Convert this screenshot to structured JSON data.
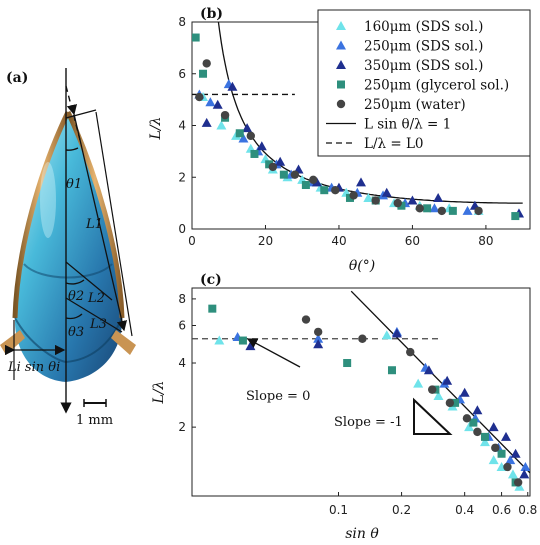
{
  "panel_a": {
    "label": "(a)",
    "theta1": "θ1",
    "L1": "L1",
    "theta2": "θ2",
    "L2": "L2",
    "theta3": "θ3",
    "L3": "L3",
    "width": "Li sin θi",
    "scale": "1 mm"
  },
  "panel_b": {
    "label": "(b)"
  },
  "panel_c": {
    "label": "(c)",
    "slope0": "Slope = 0",
    "slope1": "Slope = -1"
  },
  "colors": {
    "s160": "#6fe3ea",
    "s250": "#3b73e0",
    "s350": "#1f2f8f",
    "glycerol": "#2e8f7d",
    "water": "#444444"
  },
  "chart_data": [
    {
      "type": "scatter",
      "xlabel": "θ(°)",
      "ylabel": "L/λ",
      "xlim": [
        0,
        92
      ],
      "ylim": [
        0,
        8
      ],
      "xticks": [
        0,
        20,
        40,
        60,
        80
      ],
      "yticks": [
        0,
        2,
        4,
        6,
        8
      ],
      "legend_position": "top-right",
      "legend": [
        "160μm (SDS sol.)",
        "250μm (SDS sol.)",
        "350μm (SDS sol.)",
        "250μm (glycerol sol.)",
        "250μm (water)",
        "L sin θ/λ = 1",
        "L/λ = L0"
      ],
      "series": [
        {
          "name": "160μm (SDS sol.)",
          "marker": "triangle",
          "color_key": "s160",
          "x": [
            3,
            8,
            12,
            16,
            20,
            22,
            26,
            30,
            35,
            42,
            48,
            55,
            62,
            70,
            78
          ],
          "y": [
            5.1,
            4.0,
            3.6,
            3.1,
            2.7,
            2.3,
            2.0,
            1.9,
            1.6,
            1.4,
            1.2,
            1.0,
            0.9,
            0.8,
            0.7
          ]
        },
        {
          "name": "250μm (SDS sol.)",
          "marker": "triangle",
          "color_key": "s250",
          "x": [
            2,
            5,
            10,
            14,
            18,
            23,
            27,
            33,
            38,
            45,
            52,
            58,
            66,
            75,
            89
          ],
          "y": [
            5.2,
            4.9,
            5.6,
            3.5,
            3.0,
            2.5,
            2.1,
            1.8,
            1.6,
            1.4,
            1.3,
            1.0,
            0.8,
            0.7,
            0.6
          ]
        },
        {
          "name": "350μm (SDS sol.)",
          "marker": "triangle",
          "color_key": "s350",
          "x": [
            4,
            7,
            11,
            15,
            19,
            24,
            29,
            34,
            40,
            46,
            53,
            60,
            67,
            77,
            89
          ],
          "y": [
            4.1,
            4.8,
            5.5,
            3.9,
            3.2,
            2.6,
            2.3,
            1.8,
            1.6,
            1.8,
            1.4,
            1.1,
            1.2,
            0.9,
            0.6
          ]
        },
        {
          "name": "250μm (glycerol sol.)",
          "marker": "square",
          "color_key": "glycerol",
          "x": [
            1,
            3,
            9,
            13,
            17,
            21,
            25,
            31,
            36,
            43,
            50,
            57,
            64,
            71,
            88
          ],
          "y": [
            7.4,
            6.0,
            4.3,
            3.7,
            2.9,
            2.5,
            2.1,
            1.7,
            1.5,
            1.2,
            1.1,
            0.9,
            0.8,
            0.7,
            0.5
          ]
        },
        {
          "name": "250μm (water)",
          "marker": "circle",
          "color_key": "water",
          "x": [
            2,
            4,
            9,
            16,
            22,
            28,
            33,
            39,
            44,
            50,
            56,
            62,
            68,
            78
          ],
          "y": [
            5.1,
            6.4,
            4.4,
            3.6,
            2.4,
            2.1,
            1.9,
            1.5,
            1.3,
            1.1,
            1.0,
            0.8,
            0.7,
            0.7
          ]
        }
      ],
      "curve": {
        "name": "L sin θ/λ = 1",
        "formula": "1/sin(θ)"
      },
      "dashed": {
        "name": "L/λ = L0",
        "y": 5.2,
        "x_range": [
          0,
          28
        ]
      }
    },
    {
      "type": "scatter",
      "xlabel": "sin θ",
      "ylabel": "L/λ",
      "xscale": "log",
      "yscale": "log",
      "xlim": [
        0.02,
        0.82
      ],
      "ylim": [
        0.95,
        9
      ],
      "xticks": [
        0.1,
        0.2,
        0.4,
        0.6,
        0.8
      ],
      "yticks": [
        2,
        4,
        6,
        8
      ],
      "series": [
        {
          "marker": "triangle",
          "color_key": "s160",
          "x": [
            0.027,
            0.17,
            0.24,
            0.3,
            0.35,
            0.42,
            0.5,
            0.55,
            0.6,
            0.68,
            0.73
          ],
          "y": [
            5.1,
            5.4,
            3.2,
            2.8,
            2.5,
            2.0,
            1.7,
            1.4,
            1.3,
            1.2,
            1.05
          ]
        },
        {
          "marker": "triangle",
          "color_key": "s250",
          "x": [
            0.033,
            0.08,
            0.19,
            0.26,
            0.32,
            0.38,
            0.45,
            0.52,
            0.58,
            0.66,
            0.78
          ],
          "y": [
            5.3,
            5.2,
            5.6,
            3.8,
            3.2,
            2.7,
            2.2,
            1.8,
            1.6,
            1.4,
            1.3
          ]
        },
        {
          "marker": "triangle",
          "color_key": "s350",
          "x": [
            0.038,
            0.08,
            0.19,
            0.27,
            0.33,
            0.4,
            0.46,
            0.55,
            0.63,
            0.7,
            0.77
          ],
          "y": [
            4.8,
            4.9,
            5.5,
            3.7,
            3.3,
            2.9,
            2.4,
            2.0,
            1.8,
            1.5,
            1.2
          ]
        },
        {
          "marker": "square",
          "color_key": "glycerol",
          "x": [
            0.025,
            0.035,
            0.11,
            0.18,
            0.29,
            0.36,
            0.44,
            0.5,
            0.6,
            0.7
          ],
          "y": [
            7.2,
            5.1,
            4.0,
            3.7,
            3.0,
            2.6,
            2.1,
            1.8,
            1.5,
            1.1
          ]
        },
        {
          "marker": "circle",
          "color_key": "water",
          "x": [
            0.07,
            0.08,
            0.13,
            0.22,
            0.28,
            0.34,
            0.41,
            0.46,
            0.56,
            0.64,
            0.72
          ],
          "y": [
            6.4,
            5.6,
            5.2,
            4.5,
            3.0,
            2.6,
            2.2,
            1.9,
            1.6,
            1.3,
            1.1
          ]
        }
      ],
      "curve": {
        "name": "Slope = -1",
        "formula": "1/x"
      },
      "dashed": {
        "y": 5.2,
        "x_range": [
          0.02,
          0.3
        ]
      }
    }
  ]
}
